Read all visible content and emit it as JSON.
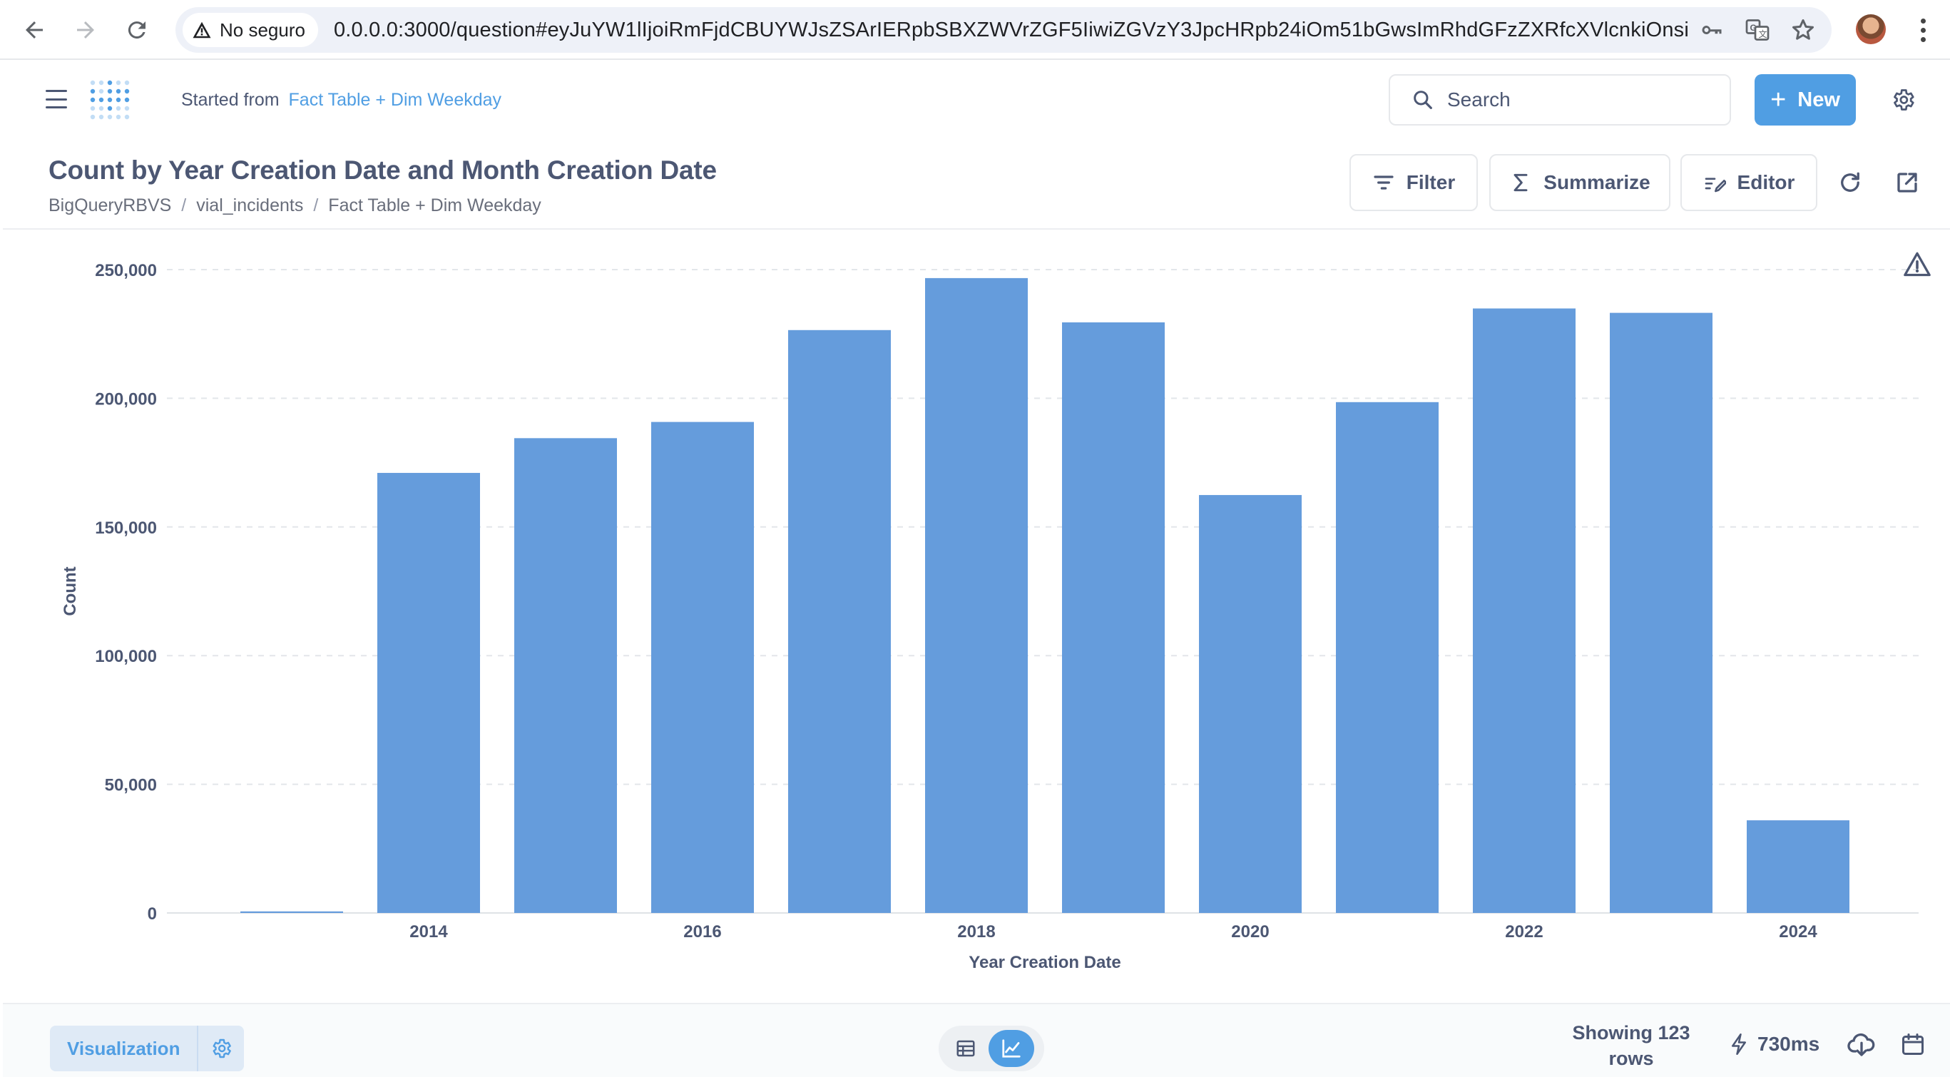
{
  "browser": {
    "security_label": "No seguro",
    "url": "0.0.0.0:3000/question#eyJuYW1lIjoiRmFjdCBUYWJsZSArIERpbSBXZWVrZGF5IiwiZGVzY3JpcHRpb24iOm51bGwsImRhdGFzZXRfcXVlcnkiOnsi..."
  },
  "header": {
    "started_from_prefix": "Started from",
    "started_from_link": "Fact Table + Dim Weekday",
    "search_label": "Search",
    "new_label": "New"
  },
  "question": {
    "title": "Count by Year Creation Date and Month Creation Date",
    "breadcrumb": [
      "BigQueryRBVS",
      "vial_incidents",
      "Fact Table + Dim Weekday"
    ],
    "breadcrumb_separator": "/",
    "filter_label": "Filter",
    "summarize_label": "Summarize",
    "editor_label": "Editor"
  },
  "chart_data": {
    "type": "bar",
    "categories": [
      "2013",
      "2014",
      "2015",
      "2016",
      "2017",
      "2018",
      "2019",
      "2020",
      "2021",
      "2022",
      "2023",
      "2024"
    ],
    "values": [
      600,
      171000,
      184500,
      190800,
      226500,
      246700,
      229500,
      162400,
      198500,
      234900,
      233200,
      36000
    ],
    "x_tick_labels": [
      "",
      "2014",
      "",
      "2016",
      "",
      "2018",
      "",
      "2020",
      "",
      "2022",
      "",
      "2024"
    ],
    "y_ticks": [
      0,
      50000,
      100000,
      150000,
      200000,
      250000
    ],
    "y_tick_labels": [
      "0",
      "50,000",
      "100,000",
      "150,000",
      "200,000",
      "250,000"
    ],
    "xlabel": "Year Creation Date",
    "ylabel": "Count",
    "ylim": [
      0,
      250000
    ],
    "grid": true,
    "bar_color": "#659cdc"
  },
  "footer": {
    "visualization_label": "Visualization",
    "row_count_label": "Showing 123 rows",
    "timing_label": "730ms"
  },
  "colors": {
    "brand": "#509ee3",
    "text": "#4c5773",
    "bar": "#659cdc"
  }
}
